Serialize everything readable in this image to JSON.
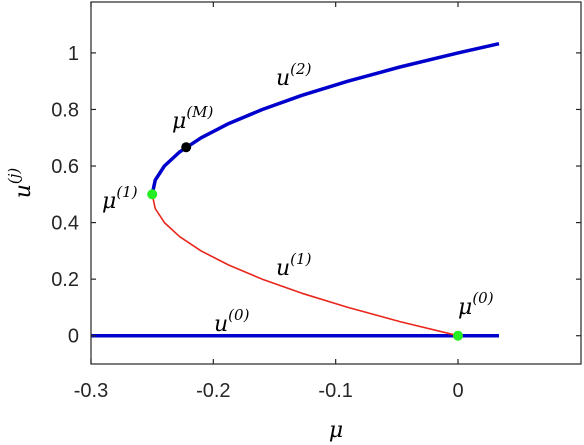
{
  "chart_data": {
    "type": "line",
    "xlabel": "μ",
    "ylabel_base": "u",
    "ylabel_sup": "(j)",
    "xlim": [
      -0.3,
      0.0
    ],
    "xlim_display_max": 0.0,
    "ylim": [
      -0.1,
      1.18
    ],
    "x_ticks": [
      -0.3,
      -0.2,
      -0.1,
      0
    ],
    "x_tick_labels": [
      "-0.3",
      "-0.2",
      "-0.1",
      "0"
    ],
    "y_ticks": [
      0,
      0.2,
      0.4,
      0.6,
      0.8,
      1
    ],
    "y_tick_labels": [
      "0",
      "0.2",
      "0.4",
      "0.6",
      "0.8",
      "1"
    ],
    "grid": false,
    "series": [
      {
        "label_base": "u",
        "label_sup": "(0)",
        "color": "#0000cc",
        "width": "thick",
        "x": [
          -0.3,
          0.0,
          0.0335
        ],
        "y": [
          0,
          0,
          0
        ]
      },
      {
        "label_base": "u",
        "label_sup": "(1)",
        "color": "#e8261c",
        "width": "thin",
        "x": [
          -0.25,
          -0.2475,
          -0.24,
          -0.2275,
          -0.21,
          -0.1875,
          -0.16,
          -0.1275,
          -0.09,
          -0.0475,
          0.0
        ],
        "y": [
          0.5,
          0.45,
          0.4,
          0.35,
          0.3,
          0.25,
          0.2,
          0.15,
          0.1,
          0.05,
          0.0
        ]
      },
      {
        "label_base": "u",
        "label_sup": "(2)",
        "color": "#0000cc",
        "width": "thick",
        "x": [
          -0.25,
          -0.2475,
          -0.24,
          -0.2275,
          -0.21,
          -0.1875,
          -0.16,
          -0.1275,
          -0.09,
          -0.0475,
          0.0,
          0.0335
        ],
        "y": [
          0.5,
          0.55,
          0.6,
          0.65,
          0.7,
          0.75,
          0.8,
          0.85,
          0.9,
          0.95,
          1.0,
          1.0325
        ]
      }
    ],
    "points": [
      {
        "label_base": "μ",
        "label_sup": "(1)",
        "x": -0.25,
        "y": 0.5,
        "color": "#22ee22"
      },
      {
        "label_base": "μ",
        "label_sup": "(0)",
        "x": 0.0,
        "y": 0.0,
        "color": "#22ee22"
      },
      {
        "label_base": "μ",
        "label_sup": "(M)",
        "x": -0.2222,
        "y": 0.6667,
        "color": "#000000"
      }
    ]
  }
}
